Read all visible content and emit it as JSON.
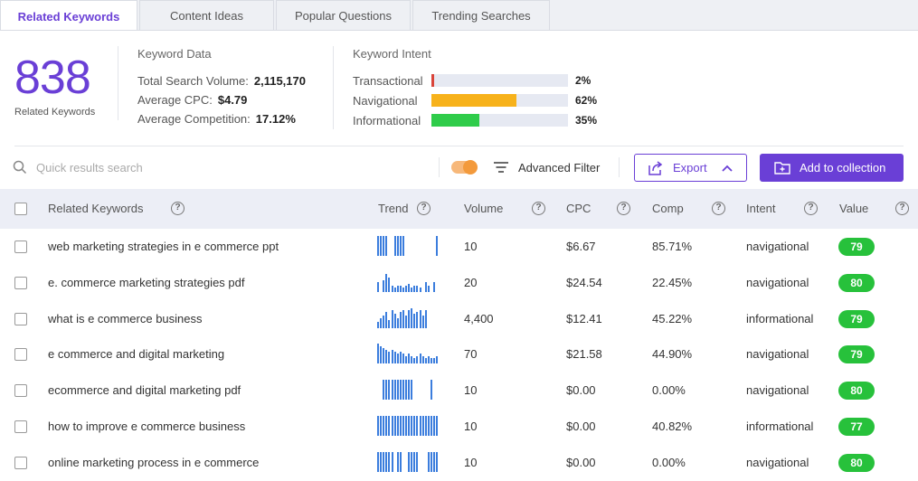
{
  "tabs": [
    {
      "label": "Related Keywords",
      "active": true
    },
    {
      "label": "Content Ideas",
      "active": false
    },
    {
      "label": "Popular Questions",
      "active": false
    },
    {
      "label": "Trending Searches",
      "active": false
    }
  ],
  "summary": {
    "count": "838",
    "count_label": "Related Keywords",
    "keyword_data": {
      "title": "Keyword Data",
      "total_search_volume_label": "Total Search Volume:",
      "total_search_volume": "2,115,170",
      "avg_cpc_label": "Average CPC:",
      "avg_cpc": "$4.79",
      "avg_competition_label": "Average Competition:",
      "avg_competition": "17.12%"
    },
    "keyword_intent": {
      "title": "Keyword Intent",
      "items": [
        {
          "label": "Transactional",
          "pct": "2%",
          "value": 0.02,
          "color": "#d9443a"
        },
        {
          "label": "Navigational",
          "pct": "62%",
          "value": 0.62,
          "color": "#f7b21b"
        },
        {
          "label": "Informational",
          "pct": "35%",
          "value": 0.35,
          "color": "#2fcc4a"
        }
      ]
    }
  },
  "toolbar": {
    "search_placeholder": "Quick results search",
    "advanced_filter_label": "Advanced Filter",
    "export_label": "Export",
    "add_collection_label": "Add to collection"
  },
  "table": {
    "headers": {
      "keyword": "Related Keywords",
      "trend": "Trend",
      "volume": "Volume",
      "cpc": "CPC",
      "comp": "Comp",
      "intent": "Intent",
      "value": "Value"
    },
    "rows": [
      {
        "keyword": "web marketing strategies in e commerce ppt",
        "volume": "10",
        "cpc": "$6.67",
        "comp": "85.71%",
        "intent": "navigational",
        "value": "79",
        "trend": [
          1,
          1,
          1,
          1,
          0,
          0,
          1,
          1,
          1,
          1,
          0,
          0,
          0,
          0,
          0,
          0,
          0,
          0,
          0,
          0,
          0,
          1
        ]
      },
      {
        "keyword": "e. commerce marketing strategies pdf",
        "volume": "20",
        "cpc": "$24.54",
        "comp": "22.45%",
        "intent": "navigational",
        "value": "80",
        "trend": [
          0.5,
          0,
          0.6,
          0.9,
          0.7,
          0.3,
          0.2,
          0.3,
          0.3,
          0.2,
          0.3,
          0.4,
          0.2,
          0.3,
          0.3,
          0.2,
          0,
          0.5,
          0.3,
          0,
          0.5,
          0
        ]
      },
      {
        "keyword": "what is e commerce business",
        "volume": "4,400",
        "cpc": "$12.41",
        "comp": "45.22%",
        "intent": "informational",
        "value": "79",
        "trend": [
          0.3,
          0.5,
          0.6,
          0.8,
          0.4,
          0.9,
          0.7,
          0.5,
          0.8,
          0.9,
          0.6,
          0.9,
          1,
          0.7,
          0.8,
          0.9,
          0.6,
          0.9,
          0,
          0,
          0,
          0
        ]
      },
      {
        "keyword": "e commerce and digital marketing",
        "volume": "70",
        "cpc": "$21.58",
        "comp": "44.90%",
        "intent": "navigational",
        "value": "79",
        "trend": [
          1,
          0.9,
          0.8,
          0.7,
          0.6,
          0.7,
          0.6,
          0.5,
          0.6,
          0.5,
          0.4,
          0.5,
          0.4,
          0.3,
          0.4,
          0.5,
          0.4,
          0.3,
          0.4,
          0.3,
          0.3,
          0.4
        ]
      },
      {
        "keyword": "ecommerce and digital marketing pdf",
        "volume": "10",
        "cpc": "$0.00",
        "comp": "0.00%",
        "intent": "navigational",
        "value": "80",
        "trend": [
          0,
          0,
          1,
          1,
          1,
          1,
          1,
          1,
          1,
          1,
          1,
          1,
          1,
          0,
          0,
          0,
          0,
          0,
          0,
          1,
          0,
          0
        ]
      },
      {
        "keyword": "how to improve e commerce business",
        "volume": "10",
        "cpc": "$0.00",
        "comp": "40.82%",
        "intent": "informational",
        "value": "77",
        "trend": [
          1,
          1,
          1,
          1,
          1,
          1,
          1,
          1,
          1,
          1,
          1,
          1,
          1,
          1,
          1,
          1,
          1,
          1,
          1,
          1,
          1,
          1
        ]
      },
      {
        "keyword": "online marketing process in e commerce",
        "volume": "10",
        "cpc": "$0.00",
        "comp": "0.00%",
        "intent": "navigational",
        "value": "80",
        "trend": [
          1,
          1,
          1,
          1,
          1,
          1,
          0,
          1,
          1,
          0,
          0,
          1,
          1,
          1,
          1,
          0,
          0,
          0,
          1,
          1,
          1,
          1
        ]
      }
    ]
  },
  "colors": {
    "accent": "#6a3fd6",
    "value_badge": "#27c13b",
    "trend_bar": "#3b7ddd"
  }
}
